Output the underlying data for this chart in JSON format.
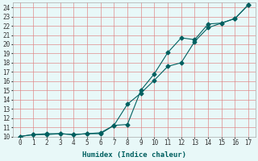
{
  "title": "",
  "xlabel": "Humidex (Indice chaleur)",
  "bg_color": "#e8f8f8",
  "grid_color": "#e08080",
  "line_color": "#006060",
  "xlim": [
    -0.5,
    17.5
  ],
  "ylim": [
    10,
    24.5
  ],
  "xticks": [
    0,
    1,
    2,
    3,
    4,
    5,
    6,
    7,
    8,
    9,
    10,
    11,
    12,
    13,
    14,
    15,
    16,
    17
  ],
  "yticks": [
    10,
    11,
    12,
    13,
    14,
    15,
    16,
    17,
    18,
    19,
    20,
    21,
    22,
    23,
    24
  ],
  "line1_x": [
    0,
    1,
    2,
    3,
    4,
    5,
    6,
    7,
    8,
    9,
    10,
    11,
    12,
    13,
    14,
    15,
    16,
    17
  ],
  "line1_y": [
    10,
    10.2,
    10.2,
    10.3,
    10.2,
    10.3,
    10.4,
    11.2,
    13.5,
    14.7,
    16.1,
    17.6,
    18.0,
    20.3,
    21.8,
    22.3,
    22.8,
    24.3
  ],
  "line2_x": [
    0,
    1,
    2,
    3,
    4,
    5,
    6,
    7,
    8,
    9,
    10,
    11,
    12,
    13,
    14,
    15,
    16,
    17
  ],
  "line2_y": [
    10,
    10.2,
    10.3,
    10.3,
    10.2,
    10.3,
    10.3,
    11.2,
    11.3,
    15.0,
    16.8,
    19.1,
    20.7,
    20.5,
    22.2,
    22.3,
    22.8,
    24.3
  ],
  "marker": "D",
  "markersize": 2.5,
  "linewidth": 0.8,
  "tick_labelsize": 5.5,
  "xlabel_fontsize": 6.5
}
